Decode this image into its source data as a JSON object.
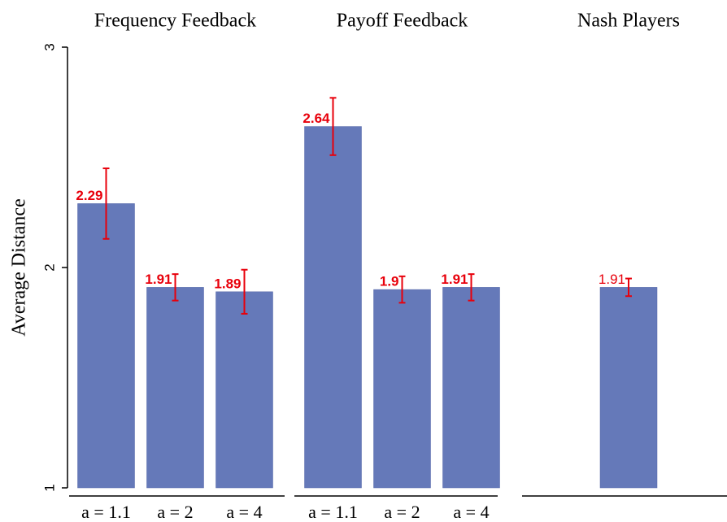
{
  "chart_data": [
    {
      "type": "bar",
      "title": "Frequency Feedback",
      "ylabel": "Average Distance",
      "categories": [
        "a = 1.1",
        "a = 2",
        "a = 4"
      ],
      "values": [
        2.29,
        1.91,
        1.89
      ],
      "errors": [
        0.16,
        0.06,
        0.1
      ],
      "color": "#6579b9",
      "error_color": "#e8000b",
      "value_label_bold": true,
      "ylim": [
        1,
        3
      ],
      "yticks": [
        1,
        2,
        3
      ]
    },
    {
      "type": "bar",
      "title": "Payoff Feedback",
      "categories": [
        "a = 1.1",
        "a = 2",
        "a = 4"
      ],
      "values": [
        2.64,
        1.9,
        1.91
      ],
      "errors": [
        0.13,
        0.06,
        0.06
      ],
      "color": "#6579b9",
      "error_color": "#e8000b",
      "value_label_bold": true,
      "ylim": [
        1,
        3
      ]
    },
    {
      "type": "bar",
      "title": "Nash Players",
      "categories": [
        null
      ],
      "values": [
        1.91
      ],
      "errors": [
        0.04
      ],
      "color": "#6579b9",
      "error_color": "#e8000b",
      "value_label_bold": false,
      "ylim": [
        1,
        3
      ]
    }
  ]
}
